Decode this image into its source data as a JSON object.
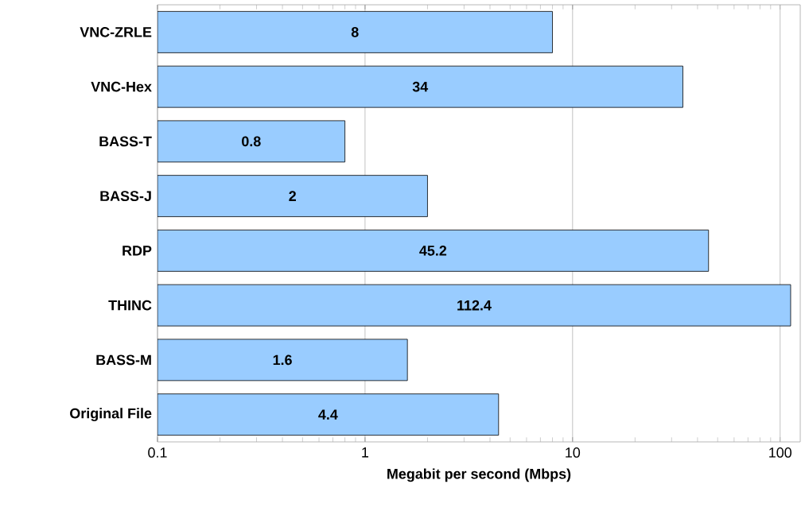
{
  "chart_data": {
    "type": "bar",
    "orientation": "horizontal",
    "xlabel": "Megabit per second (Mbps)",
    "categories": [
      "VNC-ZRLE",
      "VNC-Hex",
      "BASS-T",
      "BASS-J",
      "RDP",
      "THINC",
      "BASS-M",
      "Original File"
    ],
    "values": [
      8,
      34,
      0.8,
      2,
      45.2,
      112.4,
      1.6,
      4.4
    ],
    "color": "#99ccff",
    "log": "x",
    "xlim": [
      0.1,
      125
    ],
    "xticks": [
      0.1,
      1,
      10,
      100
    ],
    "grid": "x",
    "data_labels": true
  }
}
